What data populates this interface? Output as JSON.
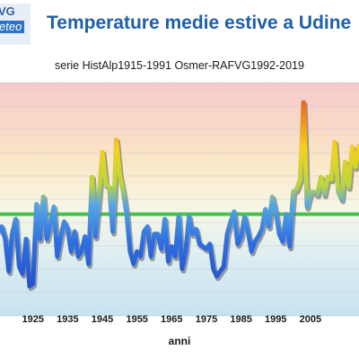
{
  "logo": {
    "line1": "VG",
    "line2": "eteo"
  },
  "title": "Temperature medie estive a Udine",
  "subtitle": "serie HistAlp1915-1991 Osmer-RAFVG1992-2019",
  "colors": {
    "title": "#1f5fa7",
    "reference_line": "#46c24a",
    "hot": "#e8301f",
    "cold": "#2f6fe0"
  },
  "chart_data": {
    "type": "line",
    "title": "Temperature medie estive a Udine",
    "subtitle": "serie HistAlp1915-1991 Osmer-RAFVG1992-2019",
    "xlabel": "anni",
    "ylabel": "",
    "x_ticks": [
      1925,
      1935,
      1945,
      1955,
      1965,
      1975,
      1985,
      1995,
      2005
    ],
    "xlim": [
      1915.5,
      2019
    ],
    "value_note": "values in degrees C, estimated; y-axis not printed in the image",
    "ylim": [
      17.6,
      27.0
    ],
    "reference_value": 21.7,
    "grid": "horizontal",
    "series": [
      {
        "x": [
          1915,
          1916,
          1917,
          1918,
          1919,
          1920,
          1921,
          1922,
          1923,
          1924,
          1925,
          1926,
          1927,
          1928,
          1929,
          1930,
          1931,
          1932,
          1933,
          1934,
          1935,
          1936,
          1937,
          1938,
          1939,
          1940,
          1941,
          1942,
          1943,
          1944,
          1945,
          1946,
          1947,
          1948,
          1949,
          1950,
          1951,
          1952,
          1953,
          1954,
          1955,
          1956,
          1957,
          1958,
          1959,
          1960,
          1961,
          1962,
          1963,
          1964,
          1965,
          1966,
          1967,
          1968,
          1969,
          1970,
          1971,
          1972,
          1973,
          1974,
          1975,
          1976,
          1977,
          1978,
          1979,
          1980,
          1981,
          1982,
          1983,
          1984,
          1985,
          1986,
          1987,
          1988,
          1989,
          1990,
          1991,
          1992,
          1993,
          1994,
          1995,
          1996,
          1997,
          1998,
          1999,
          2000,
          2001,
          2002,
          2003,
          2004,
          2005,
          2006,
          2007,
          2008,
          2009,
          2010,
          2011,
          2012,
          2013,
          2014,
          2015,
          2016,
          2017,
          2018,
          2019
        ],
        "values": [
          21.0,
          21.2,
          20.7,
          19.4,
          20.9,
          21.5,
          19.6,
          19.3,
          20.7,
          18.8,
          18.9,
          22.1,
          20.7,
          22.4,
          20.7,
          21.3,
          22.0,
          20.0,
          20.8,
          21.4,
          21.1,
          20.2,
          21.0,
          20.0,
          20.2,
          20.8,
          19.7,
          23.2,
          20.8,
          22.4,
          24.2,
          22.9,
          22.8,
          21.0,
          24.7,
          23.3,
          22.6,
          21.7,
          20.2,
          19.7,
          20.2,
          20.0,
          21.0,
          21.2,
          20.0,
          20.9,
          20.9,
          20.3,
          21.5,
          19.8,
          20.4,
          20.0,
          21.6,
          19.5,
          20.2,
          21.6,
          20.9,
          21.1,
          20.5,
          20.4,
          20.3,
          20.5,
          19.5,
          19.2,
          19.4,
          19.6,
          20.9,
          21.4,
          21.8,
          20.5,
          20.8,
          21.6,
          21.0,
          20.2,
          20.6,
          20.8,
          21.1,
          21.9,
          21.2,
          22.4,
          21.8,
          20.9,
          20.6,
          21.7,
          20.4,
          22.6,
          22.7,
          23.1,
          26.2,
          22.0,
          22.6,
          22.6,
          22.5,
          23.2,
          22.5,
          23.2,
          23.1,
          24.6,
          22.6,
          22.3,
          23.8,
          22.8,
          24.4,
          23.6,
          24.5
        ]
      }
    ]
  }
}
